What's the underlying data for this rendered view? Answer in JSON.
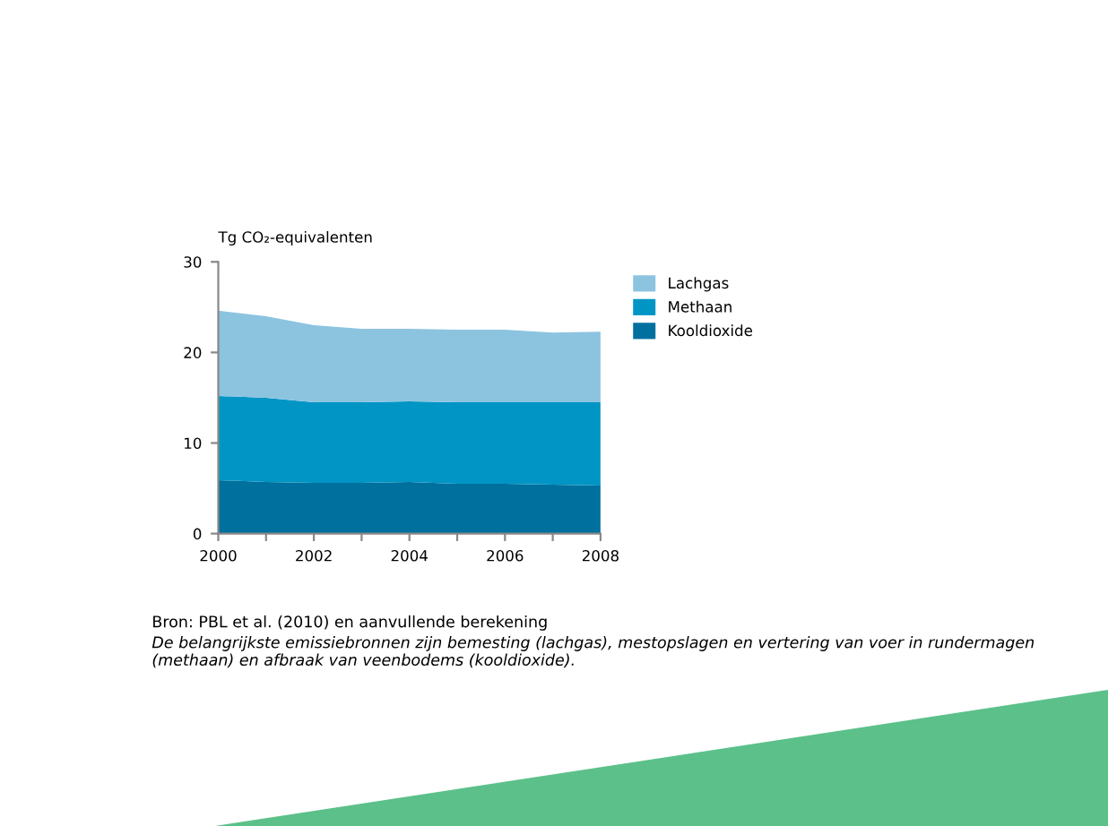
{
  "chart_data": {
    "type": "area",
    "stacked": true,
    "ylabel": "Tg CO₂-equivalenten",
    "x": [
      2000,
      2001,
      2002,
      2003,
      2004,
      2005,
      2006,
      2007,
      2008
    ],
    "series": [
      {
        "name": "Kooldioxide",
        "color": "#00709f",
        "values": [
          5.9,
          5.7,
          5.6,
          5.6,
          5.7,
          5.5,
          5.5,
          5.4,
          5.3
        ]
      },
      {
        "name": "Methaan",
        "color": "#0095c4",
        "values": [
          9.3,
          9.3,
          8.9,
          8.9,
          8.9,
          9.0,
          9.0,
          9.1,
          9.2
        ]
      },
      {
        "name": "Lachgas",
        "color": "#8cc4e0",
        "values": [
          9.4,
          9.0,
          8.5,
          8.1,
          8.0,
          8.0,
          8.0,
          7.7,
          7.8
        ]
      }
    ],
    "xlim": [
      2000,
      2008
    ],
    "xticks": [
      2000,
      {
        "value": 2001,
        "label": null
      },
      2002,
      {
        "value": 2003,
        "label": null
      },
      2004,
      {
        "value": 2005,
        "label": null
      },
      2006,
      {
        "value": 2007,
        "label": null
      },
      2008
    ],
    "ylim": [
      0,
      30
    ],
    "yticks": [
      0,
      10,
      20,
      30
    ],
    "grid": false,
    "legend": "top right",
    "annotations": [
      "Bron: PBL et al. (2010) en aanvullende berekening",
      "De belangrijkste emissiebronnen zijn bemesting (lachgas), mestopslagen en vertering van voer in rundermagen (methaan) en afbraak van veenbodems (kooldioxide)."
    ]
  }
}
